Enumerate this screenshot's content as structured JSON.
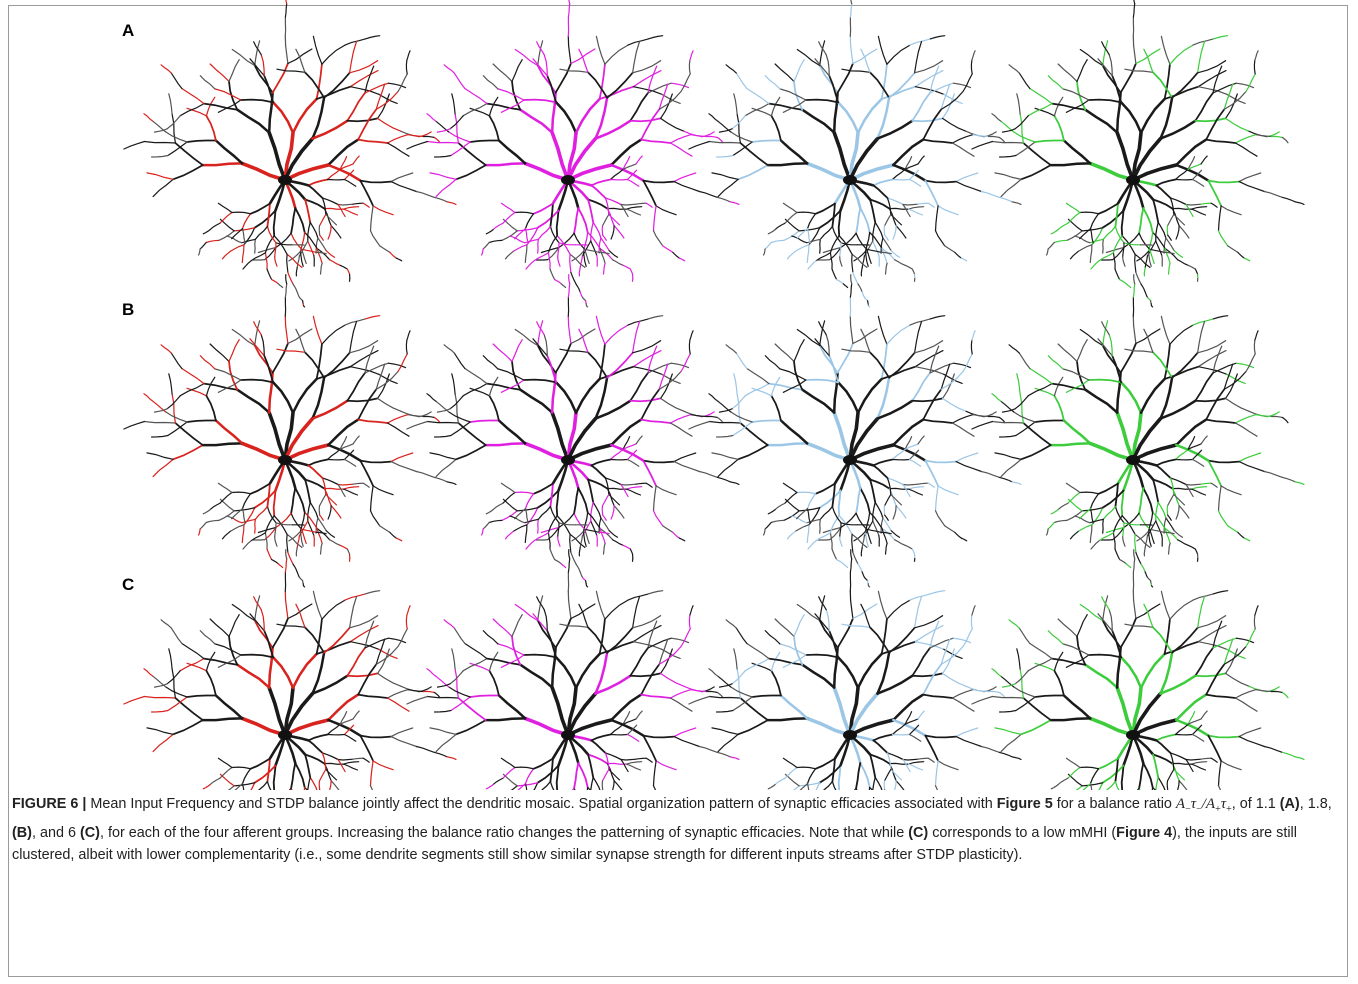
{
  "figure": {
    "panel_labels": [
      "A",
      "B",
      "C"
    ],
    "caption": {
      "parts": [
        "FIGURE 6 |",
        " Mean Input Frequency and STDP balance jointly affect the dendritic mosaic. Spatial organization pattern of synaptic efficacies associated with ",
        "Figure 5",
        " for a balance ratio ",
        "A",
        "−",
        "τ",
        "−",
        "/A",
        "+",
        "τ",
        "+",
        ", of 1.1 ",
        "(A)",
        ", 1.8, ",
        "(B)",
        ", and 6 ",
        "(C)",
        ", for each of the four afferent groups. Increasing the balance ratio changes the patterning of synaptic efficacies. Note that while ",
        "(C)",
        " corresponds to a low mMHI (",
        "Figure 4",
        "), the inputs are still clustered, albeit with lower complementarity (i.e., some dendrite segments still show similar synapse strength for different inputs streams after STDP plasticity)."
      ]
    }
  }
}
